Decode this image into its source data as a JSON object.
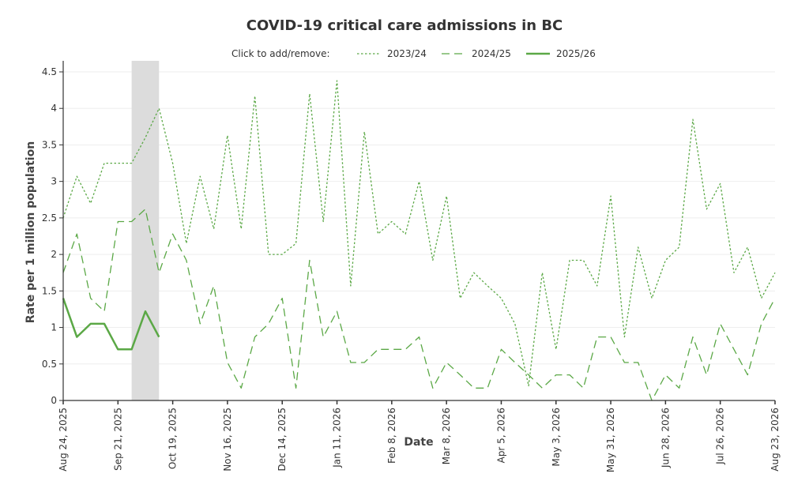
{
  "chart_data": {
    "type": "line",
    "title": "COVID-19 critical care admissions in BC",
    "xlabel": "Date",
    "ylabel": "Rate per 1 million population",
    "ylim": [
      0,
      4.5
    ],
    "yticks": [
      0,
      0.5,
      1,
      1.5,
      2,
      2.5,
      3,
      3.5,
      4,
      4.5
    ],
    "ytick_labels": [
      "0",
      "0.5",
      "1",
      "1.5",
      "2",
      "2.5",
      "3",
      "3.5",
      "4",
      "4.5"
    ],
    "x_start": "Aug 24, 2025",
    "x_step_weeks": 1,
    "x_count": 53,
    "xtick_labels": [
      "Aug 24, 2025",
      "Sep 21, 2025",
      "Oct 19, 2025",
      "Nov 16, 2025",
      "Dec 14, 2025",
      "Jan 11, 2026",
      "Feb 8, 2026",
      "Mar 8, 2026",
      "Apr 5, 2026",
      "May 3, 2026",
      "May 31, 2026",
      "Jun 28, 2026",
      "Jul 26, 2026",
      "Aug 23, 2026"
    ],
    "xtick_every_weeks": 4,
    "highlight_week_range": [
      5,
      7
    ],
    "grid": true,
    "legend": {
      "placement": "top-center",
      "prompt": "Click to add/remove:",
      "entries": [
        "2023/24",
        "2024/25",
        "2025/26"
      ]
    },
    "colors": {
      "line": "#5ba846",
      "highlight": "#dcdcdc",
      "grid": "#eeeeee"
    },
    "series": [
      {
        "name": "2023/24",
        "style": "dotted",
        "values": [
          2.5,
          3.07,
          2.7,
          3.25,
          3.25,
          3.25,
          3.6,
          4.0,
          3.25,
          2.15,
          3.07,
          2.35,
          3.63,
          2.35,
          4.17,
          2.0,
          2.0,
          2.15,
          4.2,
          2.45,
          4.38,
          1.57,
          3.68,
          2.28,
          2.45,
          2.28,
          3.0,
          1.92,
          2.8,
          1.4,
          1.75,
          1.57,
          1.4,
          1.05,
          0.2,
          1.75,
          0.7,
          1.92,
          1.92,
          1.57,
          2.8,
          0.87,
          2.1,
          1.4,
          1.92,
          2.1,
          3.85,
          2.62,
          2.97,
          1.75,
          2.1,
          1.4,
          1.75
        ]
      },
      {
        "name": "2024/25",
        "style": "dashed",
        "values": [
          1.75,
          2.28,
          1.4,
          1.22,
          2.45,
          2.45,
          2.62,
          1.75,
          2.28,
          1.92,
          1.05,
          1.57,
          0.52,
          0.17,
          0.87,
          1.05,
          1.4,
          0.17,
          1.92,
          0.87,
          1.22,
          0.52,
          0.52,
          0.7,
          0.7,
          0.7,
          0.87,
          0.17,
          0.52,
          0.35,
          0.17,
          0.17,
          0.7,
          0.52,
          0.35,
          0.17,
          0.35,
          0.35,
          0.17,
          0.87,
          0.87,
          0.52,
          0.52,
          0,
          0.35,
          0.17,
          0.87,
          0.35,
          1.05,
          0.7,
          0.35,
          1.05,
          1.4
        ]
      },
      {
        "name": "2025/26",
        "style": "solid",
        "values": [
          1.4,
          0.87,
          1.05,
          1.05,
          0.7,
          0.7,
          1.22,
          0.87
        ]
      }
    ]
  }
}
